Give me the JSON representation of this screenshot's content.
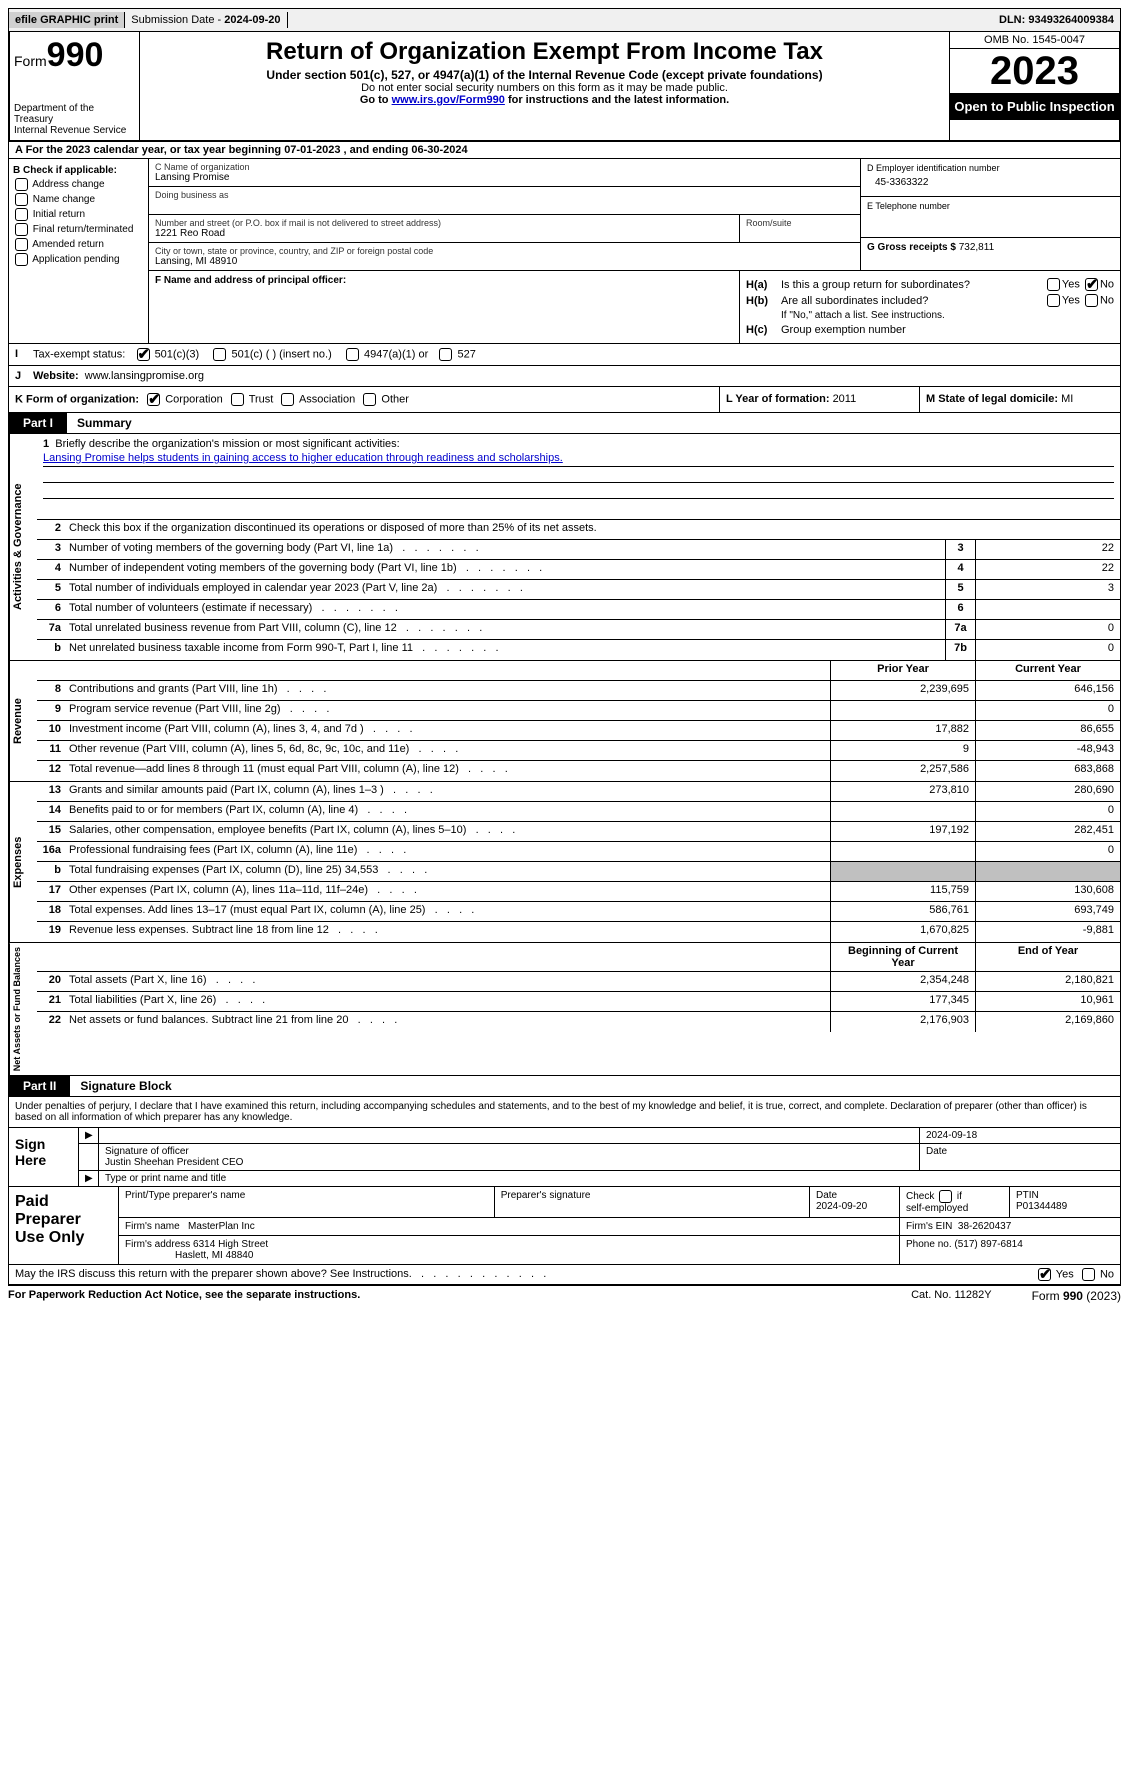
{
  "topbar": {
    "efile": "efile GRAPHIC print",
    "sub_label": "Submission Date - ",
    "sub_date": "2024-09-20",
    "dln_label": "DLN: ",
    "dln": "93493264009384"
  },
  "header": {
    "form_prefix": "Form",
    "form_num": "990",
    "dept": "Department of the Treasury\nInternal Revenue Service",
    "title": "Return of Organization Exempt From Income Tax",
    "subtitle": "Under section 501(c), 527, or 4947(a)(1) of the Internal Revenue Code (except private foundations)",
    "note1": "Do not enter social security numbers on this form as it may be made public.",
    "note2_pre": "Go to ",
    "note2_link": "www.irs.gov/Form990",
    "note2_post": " for instructions and the latest information.",
    "omb": "OMB No. 1545-0047",
    "year": "2023",
    "open": "Open to Public Inspection"
  },
  "rowA": {
    "text": "A For the 2023 calendar year, or tax year beginning 07-01-2023   , and ending 06-30-2024"
  },
  "colB": {
    "label": "B Check if applicable:",
    "items": [
      "Address change",
      "Name change",
      "Initial return",
      "Final return/terminated",
      "Amended return",
      "Application pending"
    ]
  },
  "colC": {
    "name_label": "C Name of organization",
    "name": "Lansing Promise",
    "dba_label": "Doing business as",
    "dba": "",
    "addr_label": "Number and street (or P.O. box if mail is not delivered to street address)",
    "addr": "1221 Reo Road",
    "room_label": "Room/suite",
    "city_label": "City or town, state or province, country, and ZIP or foreign postal code",
    "city": "Lansing, MI  48910"
  },
  "colD": {
    "ein_label": "D Employer identification number",
    "ein": "45-3363322",
    "phone_label": "E Telephone number",
    "phone": "",
    "gross_label": "G Gross receipts $ ",
    "gross": "732,811"
  },
  "colF": {
    "label": "F  Name and address of principal officer:",
    "value": ""
  },
  "colH": {
    "a_label": "H(a)",
    "a_text": "Is this a group return for subordinates?",
    "a_yes": "Yes",
    "a_no": "No",
    "b_label": "H(b)",
    "b_text": "Are all subordinates included?",
    "b_note": "If \"No,\" attach a list. See instructions.",
    "c_label": "H(c)",
    "c_text": "Group exemption number"
  },
  "rowI": {
    "label": "I",
    "text": "Tax-exempt status:",
    "opt1": "501(c)(3)",
    "opt2": "501(c) (  ) (insert no.)",
    "opt3": "4947(a)(1) or",
    "opt4": "527"
  },
  "rowJ": {
    "label": "J",
    "text": "Website:",
    "value": "www.lansingpromise.org"
  },
  "rowK": {
    "label": "K Form of organization:",
    "opts": [
      "Corporation",
      "Trust",
      "Association",
      "Other"
    ]
  },
  "rowL": {
    "label": "L Year of formation: ",
    "value": "2011"
  },
  "rowM": {
    "label": "M State of legal domicile: ",
    "value": "MI"
  },
  "part1": {
    "num": "Part I",
    "title": "Summary"
  },
  "mission": {
    "num": "1",
    "label": "Briefly describe the organization's mission or most significant activities:",
    "text": "Lansing Promise helps students in gaining access to higher education through readiness and scholarships."
  },
  "line2": {
    "num": "2",
    "text": "Check this box      if the organization discontinued its operations or disposed of more than 25% of its net assets."
  },
  "gov": {
    "side": "Activities & Governance",
    "rows": [
      {
        "n": "3",
        "d": "Number of voting members of the governing body (Part VI, line 1a)",
        "box": "3",
        "v": "22"
      },
      {
        "n": "4",
        "d": "Number of independent voting members of the governing body (Part VI, line 1b)",
        "box": "4",
        "v": "22"
      },
      {
        "n": "5",
        "d": "Total number of individuals employed in calendar year 2023 (Part V, line 2a)",
        "box": "5",
        "v": "3"
      },
      {
        "n": "6",
        "d": "Total number of volunteers (estimate if necessary)",
        "box": "6",
        "v": ""
      },
      {
        "n": "7a",
        "d": "Total unrelated business revenue from Part VIII, column (C), line 12",
        "box": "7a",
        "v": "0"
      },
      {
        "n": "b",
        "d": "Net unrelated business taxable income from Form 990-T, Part I, line 11",
        "box": "7b",
        "v": "0"
      }
    ]
  },
  "rev": {
    "side": "Revenue",
    "hdr": {
      "py": "Prior Year",
      "cy": "Current Year"
    },
    "rows": [
      {
        "n": "8",
        "d": "Contributions and grants (Part VIII, line 1h)",
        "py": "2,239,695",
        "cy": "646,156"
      },
      {
        "n": "9",
        "d": "Program service revenue (Part VIII, line 2g)",
        "py": "",
        "cy": "0"
      },
      {
        "n": "10",
        "d": "Investment income (Part VIII, column (A), lines 3, 4, and 7d )",
        "py": "17,882",
        "cy": "86,655"
      },
      {
        "n": "11",
        "d": "Other revenue (Part VIII, column (A), lines 5, 6d, 8c, 9c, 10c, and 11e)",
        "py": "9",
        "cy": "-48,943"
      },
      {
        "n": "12",
        "d": "Total revenue—add lines 8 through 11 (must equal Part VIII, column (A), line 12)",
        "py": "2,257,586",
        "cy": "683,868"
      }
    ]
  },
  "exp": {
    "side": "Expenses",
    "rows": [
      {
        "n": "13",
        "d": "Grants and similar amounts paid (Part IX, column (A), lines 1–3 )",
        "py": "273,810",
        "cy": "280,690"
      },
      {
        "n": "14",
        "d": "Benefits paid to or for members (Part IX, column (A), line 4)",
        "py": "",
        "cy": "0"
      },
      {
        "n": "15",
        "d": "Salaries, other compensation, employee benefits (Part IX, column (A), lines 5–10)",
        "py": "197,192",
        "cy": "282,451"
      },
      {
        "n": "16a",
        "d": "Professional fundraising fees (Part IX, column (A), line 11e)",
        "py": "",
        "cy": "0"
      },
      {
        "n": "b",
        "d": "Total fundraising expenses (Part IX, column (D), line 25) 34,553",
        "py": "grey",
        "cy": "grey"
      },
      {
        "n": "17",
        "d": "Other expenses (Part IX, column (A), lines 11a–11d, 11f–24e)",
        "py": "115,759",
        "cy": "130,608"
      },
      {
        "n": "18",
        "d": "Total expenses. Add lines 13–17 (must equal Part IX, column (A), line 25)",
        "py": "586,761",
        "cy": "693,749"
      },
      {
        "n": "19",
        "d": "Revenue less expenses. Subtract line 18 from line 12",
        "py": "1,670,825",
        "cy": "-9,881"
      }
    ]
  },
  "net": {
    "side": "Net Assets or Fund Balances",
    "hdr": {
      "py": "Beginning of Current Year",
      "cy": "End of Year"
    },
    "rows": [
      {
        "n": "20",
        "d": "Total assets (Part X, line 16)",
        "py": "2,354,248",
        "cy": "2,180,821"
      },
      {
        "n": "21",
        "d": "Total liabilities (Part X, line 26)",
        "py": "177,345",
        "cy": "10,961"
      },
      {
        "n": "22",
        "d": "Net assets or fund balances. Subtract line 21 from line 20",
        "py": "2,176,903",
        "cy": "2,169,860"
      }
    ]
  },
  "part2": {
    "num": "Part II",
    "title": "Signature Block"
  },
  "sigtext": "Under penalties of perjury, I declare that I have examined this return, including accompanying schedules and statements, and to the best of my knowledge and belief, it is true, correct, and complete. Declaration of preparer (other than officer) is based on all information of which preparer has any knowledge.",
  "sign": {
    "label": "Sign Here",
    "date": "2024-09-18",
    "sig_label": "Signature of officer",
    "officer": "Justin Sheehan  President CEO",
    "name_label": "Type or print name and title",
    "date_label": "Date"
  },
  "prep": {
    "label": "Paid Preparer Use Only",
    "r1": {
      "c1": "Print/Type preparer's name",
      "c2": "Preparer's signature",
      "c3": "Date",
      "c3v": "2024-09-20",
      "c4": "Check      if self-employed",
      "c5": "PTIN",
      "c5v": "P01344489"
    },
    "r2": {
      "c1": "Firm's name",
      "c1v": "MasterPlan Inc",
      "c2": "Firm's EIN",
      "c2v": "38-2620437"
    },
    "r3": {
      "c1": "Firm's address",
      "c1v": "6314 High Street",
      "c1v2": "Haslett, MI  48840",
      "c2": "Phone no.",
      "c2v": "(517) 897-6814"
    }
  },
  "discuss": {
    "text": "May the IRS discuss this return with the preparer shown above? See Instructions.",
    "yes": "Yes",
    "no": "No"
  },
  "footer": {
    "left": "For Paperwork Reduction Act Notice, see the separate instructions.",
    "mid": "Cat. No. 11282Y",
    "right_pre": "Form ",
    "right_bold": "990",
    "right_post": " (2023)"
  },
  "colors": {
    "link": "#0000cc",
    "grey": "#c0c0c0",
    "black": "#000000"
  }
}
